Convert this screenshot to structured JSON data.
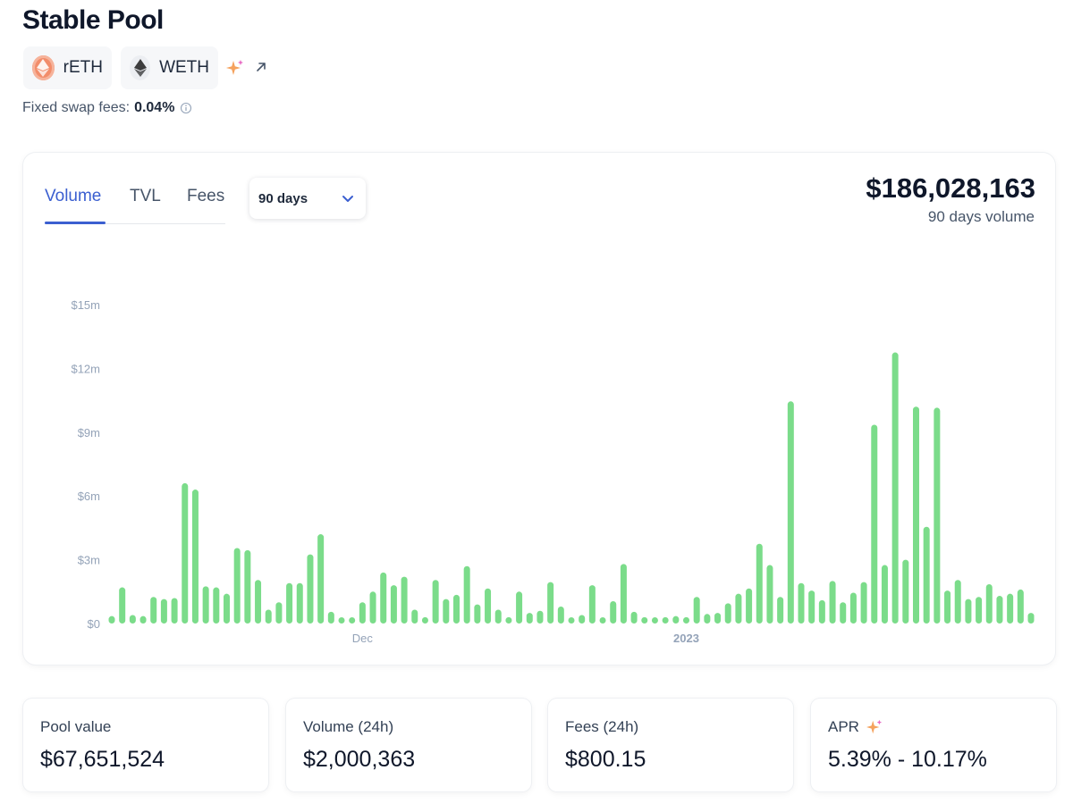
{
  "page": {
    "title": "Stable Pool"
  },
  "tokens": [
    {
      "symbol": "rETH",
      "icon": "reth-icon"
    },
    {
      "symbol": "WETH",
      "icon": "ethereum-icon"
    }
  ],
  "fees": {
    "label": "Fixed swap fees:",
    "value": "0.04%"
  },
  "chart_card": {
    "tabs": [
      "Volume",
      "TVL",
      "Fees"
    ],
    "active_tab": "Volume",
    "range": "90 days",
    "total_value": "$186,028,163",
    "total_caption": "90 days volume"
  },
  "chart_data": {
    "type": "bar",
    "color": "#7bdc8a",
    "ylim": [
      0,
      15
    ],
    "y_unit": "millions USD",
    "y_ticks": [
      "$0",
      "$3m",
      "$6m",
      "$9m",
      "$12m",
      "$15m"
    ],
    "x_ticks": [
      {
        "label": "Dec",
        "bar_index": 24
      },
      {
        "label": "2023",
        "bar_index": 55
      }
    ],
    "values": [
      0.35,
      1.7,
      0.4,
      0.35,
      1.25,
      1.15,
      1.2,
      6.6,
      6.3,
      1.75,
      1.7,
      1.4,
      3.55,
      3.45,
      2.05,
      0.65,
      1.0,
      1.9,
      1.9,
      3.25,
      4.2,
      0.55,
      0.15,
      0.25,
      1.0,
      1.5,
      2.4,
      1.8,
      2.2,
      0.65,
      0.3,
      2.05,
      1.15,
      1.35,
      2.7,
      0.9,
      1.65,
      0.65,
      0.3,
      1.5,
      0.5,
      0.6,
      1.95,
      0.8,
      0.2,
      0.4,
      1.8,
      0.25,
      1.05,
      2.8,
      0.55,
      0.3,
      0.15,
      0.3,
      0.35,
      0.3,
      1.25,
      0.45,
      0.5,
      0.95,
      1.4,
      1.65,
      3.75,
      2.75,
      1.25,
      10.45,
      1.9,
      1.55,
      1.1,
      2.0,
      1.0,
      1.45,
      1.95,
      9.35,
      2.75,
      12.75,
      3.0,
      10.2,
      4.55,
      10.15,
      1.55,
      2.05,
      1.15,
      1.25,
      1.85,
      1.3,
      1.4,
      1.6,
      0.5
    ]
  },
  "stats": [
    {
      "label": "Pool value",
      "value": "$67,651,524"
    },
    {
      "label": "Volume (24h)",
      "value": "$2,000,363"
    },
    {
      "label": "Fees (24h)",
      "value": "$800.15"
    },
    {
      "label": "APR",
      "value": "5.39% - 10.17%",
      "icon": "sparkle-icon"
    }
  ]
}
